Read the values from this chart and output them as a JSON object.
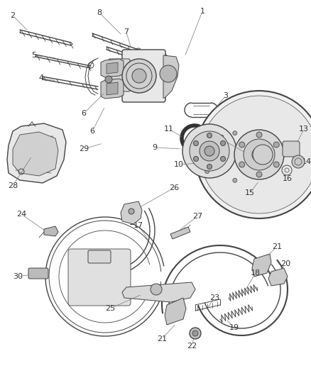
{
  "bg_color": "#ffffff",
  "line_color": "#444444",
  "text_color": "#333333",
  "fig_width": 4.38,
  "fig_height": 5.33,
  "dpi": 100
}
